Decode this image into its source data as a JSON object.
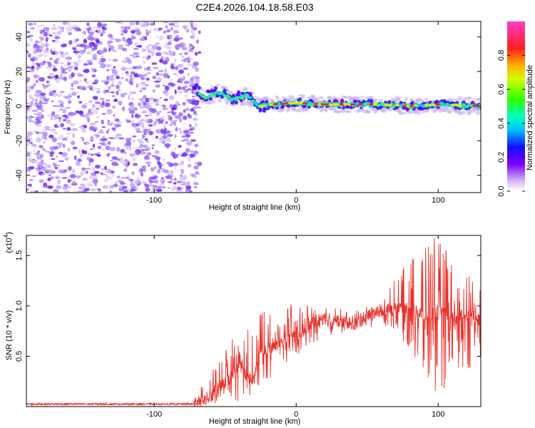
{
  "title": "C2E4.2026.104.18.58.E03",
  "chart_data": [
    {
      "type": "heatmap",
      "name": "spectrogram",
      "xlabel": "Height of straight line (km)",
      "ylabel": "Frequency (Hz)",
      "xlim": [
        -190,
        130
      ],
      "ylim": [
        -50,
        49
      ],
      "x_ticks": [
        -100,
        0,
        100
      ],
      "x_tick_labels": [
        "-100",
        "0",
        "100"
      ],
      "y_ticks": [
        -40,
        -20,
        0,
        20,
        40
      ],
      "y_tick_labels": [
        "-40",
        "-20",
        "0",
        "20",
        "40"
      ],
      "noise_region_x": [
        -190,
        -72
      ],
      "signal_line": {
        "x": [
          -72,
          -65,
          -55,
          -45,
          -35,
          -25,
          -15,
          0,
          20,
          40,
          60,
          80,
          100,
          130
        ],
        "y": [
          12,
          5,
          8,
          4,
          6,
          0,
          1,
          2,
          1,
          1,
          1,
          0,
          1,
          0
        ]
      },
      "colorbar": {
        "label": "Normalized spectral amplitude",
        "range": [
          0.0,
          1.0
        ],
        "ticks": [
          0.0,
          0.2,
          0.4,
          0.6,
          0.8
        ],
        "tick_labels": [
          "0.0",
          "0.2",
          "0.4",
          "0.6",
          "0.8"
        ]
      }
    },
    {
      "type": "line",
      "name": "snr",
      "xlabel": "Height of straight line (km)",
      "ylabel": "SNR (10 * v/v)",
      "y_scale_base": "(x10",
      "y_scale_exp": "4",
      "y_scale_close": ")",
      "xlim": [
        -190,
        130
      ],
      "ylim": [
        0.0,
        1.7
      ],
      "x_ticks": [
        -100,
        0,
        100
      ],
      "x_tick_labels": [
        "-100",
        "0",
        "100"
      ],
      "y_ticks": [
        0.5,
        1.0,
        1.5
      ],
      "y_tick_labels": [
        "0.5",
        "1.0",
        "1.5"
      ],
      "series": [
        {
          "name": "SNR",
          "color": "#e8302a",
          "x": [
            -190,
            -150,
            -100,
            -75,
            -65,
            -55,
            -45,
            -40,
            -35,
            -30,
            -25,
            -20,
            -10,
            0,
            10,
            20,
            30,
            40,
            50,
            60,
            70,
            80,
            90,
            100,
            110,
            120,
            130
          ],
          "y": [
            0.02,
            0.02,
            0.02,
            0.02,
            0.06,
            0.18,
            0.3,
            0.45,
            0.3,
            0.25,
            0.6,
            0.55,
            0.65,
            0.7,
            0.82,
            0.88,
            0.85,
            0.82,
            0.9,
            0.95,
            1.0,
            0.98,
            0.9,
            0.95,
            0.88,
            0.92,
            0.85
          ]
        }
      ],
      "envelope": {
        "x": [
          -75,
          -60,
          -45,
          -40,
          -30,
          -20,
          -10,
          0,
          20,
          40,
          60,
          70,
          80,
          90,
          95,
          100,
          110,
          120,
          130
        ],
        "lo": [
          0.0,
          0.02,
          0.05,
          0.05,
          0.1,
          0.25,
          0.4,
          0.5,
          0.7,
          0.75,
          0.8,
          0.75,
          0.55,
          0.2,
          0.1,
          0.15,
          0.2,
          0.3,
          0.35
        ],
        "hi": [
          0.05,
          0.35,
          0.7,
          0.6,
          0.95,
          1.0,
          1.05,
          1.0,
          1.0,
          0.95,
          1.05,
          1.3,
          1.45,
          1.6,
          1.7,
          1.65,
          1.5,
          1.35,
          1.2
        ]
      }
    }
  ]
}
